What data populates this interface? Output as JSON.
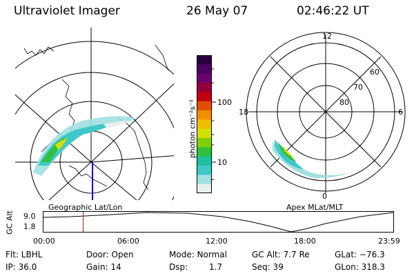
{
  "header": {
    "instrument": "Ultraviolet Imager",
    "date": "26 May 07",
    "time": "02:46:22 UT"
  },
  "left_panel": {
    "label": "Geographic Lat/Lon"
  },
  "right_panel": {
    "label": "Apex MLat/MLT",
    "mlt_labels": {
      "top": "12",
      "left": "18",
      "right": "6",
      "bottom": "0"
    },
    "lat_labels": [
      "60",
      "70",
      "80"
    ]
  },
  "colorbar": {
    "unit_label": "photon cm⁻²s⁻¹",
    "ticks": [
      "100",
      "10"
    ],
    "colors": [
      "#2a0040",
      "#4a0060",
      "#6a0070",
      "#90003a",
      "#c00010",
      "#e05000",
      "#f09000",
      "#f0c000",
      "#d0e000",
      "#80d000",
      "#30c040",
      "#20c0a0",
      "#40c8c8",
      "#a0e0e0",
      "#e8f0f0"
    ]
  },
  "timeline": {
    "ylabel": "GC Alt",
    "y_ticks": [
      "9.0",
      "1.8"
    ],
    "x_ticks": [
      "00:00",
      "06:00",
      "12:00",
      "18:00",
      "23:59"
    ],
    "cursor_hours": 2.77,
    "cursor_color": "#cc0000"
  },
  "footer": {
    "filter": "Flt: LBHL",
    "door": "Door: Open",
    "mode": "Mode: Normal",
    "gc_alt": "GC Alt: 7.7 Re",
    "glat": "GLat: −76.3",
    "ip": "IP: 36.0",
    "gain": "Gain: 14",
    "dsp_label": "Dsp:",
    "dsp_value": "1.7",
    "seq": "Seq: 39",
    "glon": "GLon: 318.3"
  }
}
